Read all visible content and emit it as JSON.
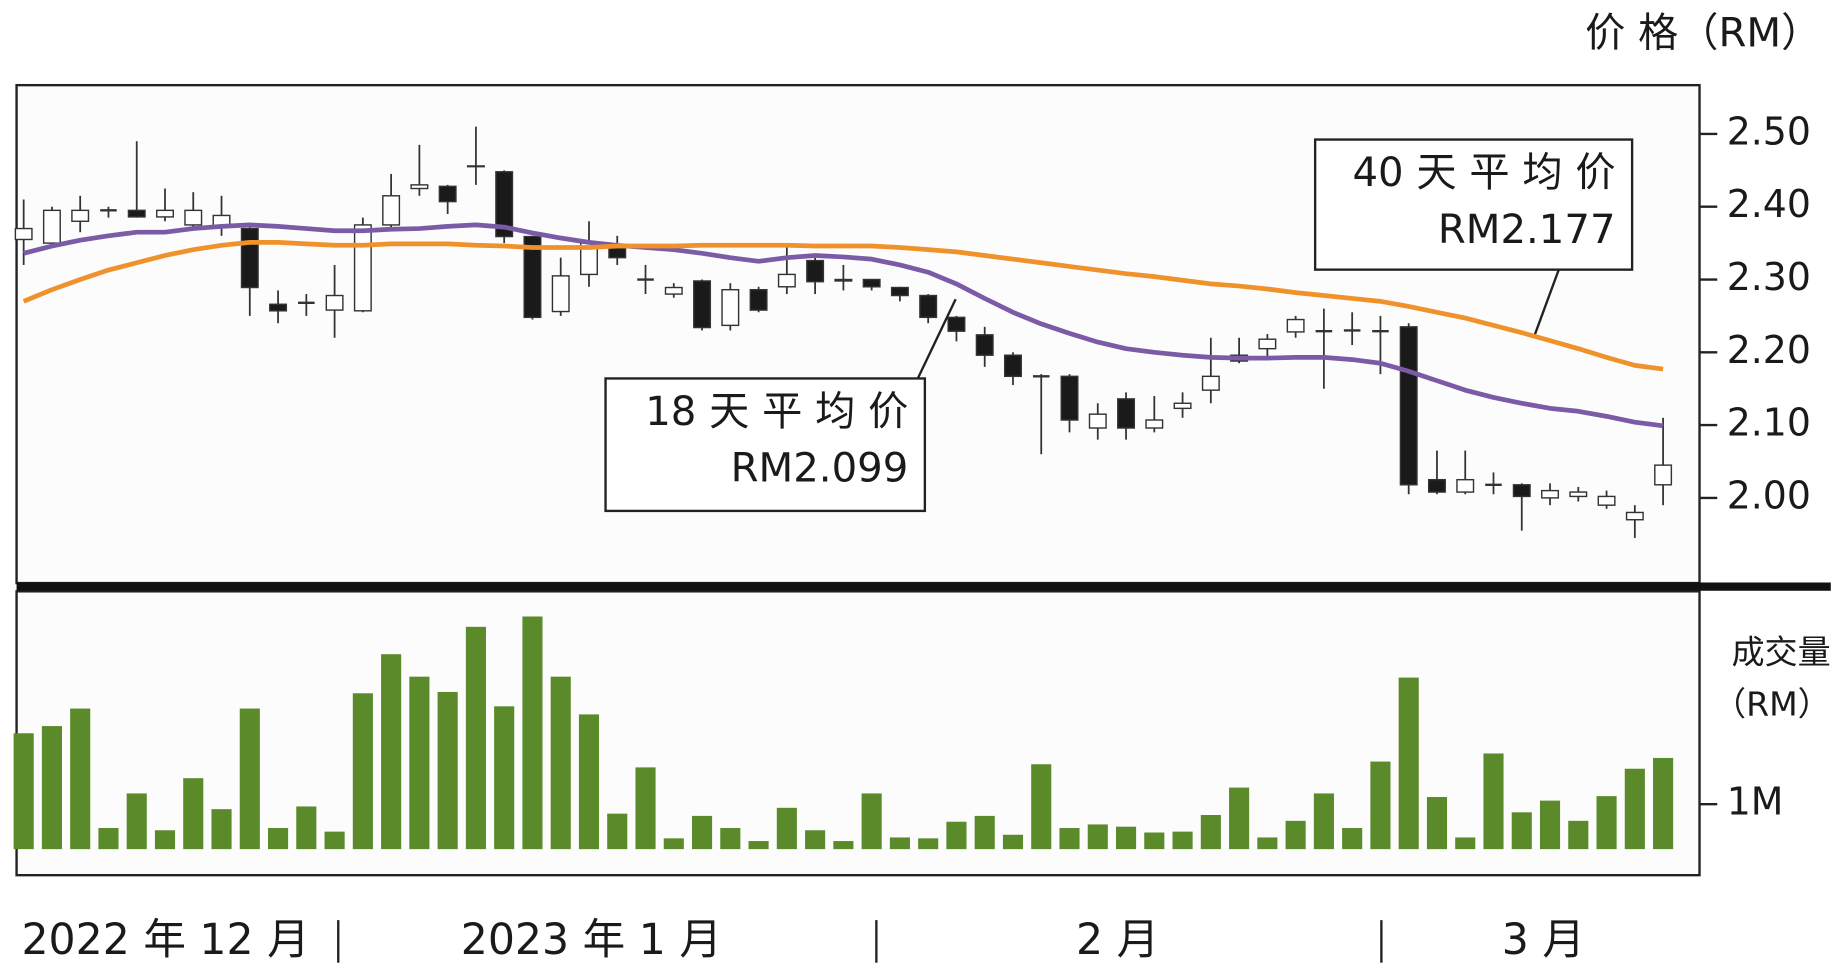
{
  "chart_data": [
    {
      "type": "candlestick",
      "y_label": "价 格（RM）",
      "categories": [
        null,
        null,
        null,
        null,
        null,
        null,
        null,
        null,
        null,
        null,
        null,
        null,
        null,
        null,
        null,
        null,
        null,
        null,
        null,
        null,
        null,
        null,
        null,
        null,
        null,
        null,
        null,
        null,
        null,
        null,
        null,
        null,
        null,
        null,
        null,
        null,
        null,
        null,
        null,
        null,
        null,
        null,
        null,
        null,
        null,
        null,
        null,
        null,
        null,
        null,
        null,
        null,
        null,
        null,
        null,
        null,
        null,
        null,
        null
      ],
      "open": [
        2.355,
        2.35,
        2.38,
        2.395,
        2.395,
        2.386,
        2.375,
        2.372,
        2.37,
        2.266,
        2.268,
        2.258,
        2.257,
        2.375,
        2.425,
        2.428,
        2.455,
        2.448,
        2.359,
        2.256,
        2.307,
        2.343,
        2.3,
        2.28,
        2.298,
        2.237,
        2.286,
        2.29,
        2.326,
        2.3,
        2.3,
        2.289,
        2.278,
        2.248,
        2.224,
        2.196,
        2.167,
        2.167,
        2.096,
        2.136,
        2.096,
        2.123,
        2.148,
        2.196,
        2.205,
        2.228,
        2.229,
        2.23,
        2.229,
        2.235,
        2.025,
        2.008,
        2.018,
        2.018,
        2.0,
        2.002,
        1.99,
        1.97,
        2.018
      ],
      "high": [
        2.41,
        2.4,
        2.415,
        2.4,
        2.49,
        2.425,
        2.42,
        2.415,
        2.375,
        2.285,
        2.28,
        2.32,
        2.385,
        2.445,
        2.485,
        2.43,
        2.51,
        2.45,
        2.36,
        2.33,
        2.38,
        2.36,
        2.32,
        2.295,
        2.3,
        2.295,
        2.29,
        2.35,
        2.335,
        2.32,
        2.3,
        2.29,
        2.28,
        2.25,
        2.235,
        2.2,
        2.17,
        2.17,
        2.13,
        2.145,
        2.14,
        2.145,
        2.22,
        2.22,
        2.225,
        2.25,
        2.26,
        2.255,
        2.25,
        2.24,
        2.065,
        2.065,
        2.035,
        2.02,
        2.02,
        2.015,
        2.01,
        1.99,
        2.11
      ],
      "low": [
        2.32,
        2.35,
        2.365,
        2.385,
        2.385,
        2.38,
        2.37,
        2.36,
        2.25,
        2.24,
        2.25,
        2.22,
        2.255,
        2.37,
        2.415,
        2.39,
        2.43,
        2.35,
        2.245,
        2.25,
        2.29,
        2.32,
        2.28,
        2.275,
        2.23,
        2.23,
        2.255,
        2.28,
        2.28,
        2.285,
        2.285,
        2.27,
        2.24,
        2.215,
        2.18,
        2.155,
        2.06,
        2.09,
        2.08,
        2.08,
        2.09,
        2.11,
        2.13,
        2.185,
        2.19,
        2.22,
        2.15,
        2.21,
        2.17,
        2.005,
        2.005,
        2.005,
        2.005,
        1.955,
        1.99,
        1.995,
        1.985,
        1.945,
        1.99
      ],
      "close": [
        2.37,
        2.395,
        2.395,
        2.395,
        2.386,
        2.395,
        2.395,
        2.388,
        2.289,
        2.257,
        2.268,
        2.278,
        2.375,
        2.415,
        2.43,
        2.407,
        2.456,
        2.359,
        2.248,
        2.305,
        2.35,
        2.33,
        2.3,
        2.289,
        2.234,
        2.286,
        2.258,
        2.307,
        2.297,
        2.298,
        2.29,
        2.278,
        2.248,
        2.229,
        2.196,
        2.167,
        2.167,
        2.107,
        2.115,
        2.096,
        2.107,
        2.13,
        2.167,
        2.188,
        2.218,
        2.245,
        2.229,
        2.23,
        2.229,
        2.018,
        2.008,
        2.025,
        2.018,
        2.002,
        2.01,
        2.008,
        2.002,
        1.98,
        2.045
      ],
      "up_color": "#ffffff",
      "down_color": "#1a1a1a",
      "series": [
        {
          "name": "18 天 平 均 价",
          "color": "#7b5aa6",
          "values": [
            2.336,
            2.346,
            2.354,
            2.36,
            2.365,
            2.365,
            2.37,
            2.373,
            2.375,
            2.373,
            2.37,
            2.367,
            2.367,
            2.369,
            2.37,
            2.373,
            2.375,
            2.372,
            2.364,
            2.357,
            2.351,
            2.347,
            2.344,
            2.341,
            2.336,
            2.33,
            2.325,
            2.33,
            2.333,
            2.331,
            2.328,
            2.32,
            2.31,
            2.294,
            2.274,
            2.255,
            2.239,
            2.226,
            2.214,
            2.205,
            2.2,
            2.196,
            2.193,
            2.192,
            2.192,
            2.193,
            2.193,
            2.19,
            2.185,
            2.174,
            2.161,
            2.148,
            2.138,
            2.13,
            2.123,
            2.119,
            2.112,
            2.104,
            2.099
          ],
          "value_labels": [
            null,
            null,
            null,
            null,
            null,
            null,
            null,
            null,
            null,
            null,
            null,
            null,
            null,
            null,
            null,
            null,
            null,
            null,
            null,
            null,
            null,
            null,
            null,
            null,
            null,
            null,
            null,
            null,
            null,
            null,
            null,
            null,
            null,
            null,
            null,
            null,
            null,
            null,
            null,
            null,
            null,
            null,
            null,
            null,
            null,
            null,
            null,
            null,
            null,
            null,
            null,
            null,
            null,
            null,
            null,
            null,
            null,
            null,
            "RM2.099"
          ]
        },
        {
          "name": "40 天 平 均 价",
          "color": "#f0922b",
          "values": [
            2.27,
            2.286,
            2.3,
            2.313,
            2.323,
            2.333,
            2.341,
            2.347,
            2.351,
            2.351,
            2.349,
            2.347,
            2.347,
            2.349,
            2.349,
            2.349,
            2.347,
            2.346,
            2.344,
            2.344,
            2.344,
            2.346,
            2.346,
            2.346,
            2.347,
            2.347,
            2.347,
            2.347,
            2.346,
            2.346,
            2.346,
            2.344,
            2.341,
            2.338,
            2.333,
            2.328,
            2.323,
            2.318,
            2.313,
            2.308,
            2.304,
            2.299,
            2.294,
            2.291,
            2.287,
            2.282,
            2.278,
            2.274,
            2.27,
            2.263,
            2.255,
            2.247,
            2.237,
            2.227,
            2.216,
            2.205,
            2.193,
            2.182,
            2.177
          ],
          "value_labels": [
            null,
            null,
            null,
            null,
            null,
            null,
            null,
            null,
            null,
            null,
            null,
            null,
            null,
            null,
            null,
            null,
            null,
            null,
            null,
            null,
            null,
            null,
            null,
            null,
            null,
            null,
            null,
            null,
            null,
            null,
            null,
            null,
            null,
            null,
            null,
            null,
            null,
            null,
            null,
            null,
            null,
            null,
            null,
            null,
            null,
            null,
            null,
            null,
            null,
            null,
            null,
            null,
            null,
            null,
            null,
            null,
            null,
            null,
            "RM2.177"
          ]
        }
      ],
      "ylim": [
        1.883,
        2.567
      ],
      "yticks": [
        {
          "value": 2.5,
          "label": "2.50"
        },
        {
          "value": 2.4,
          "label": "2.40"
        },
        {
          "value": 2.3,
          "label": "2.30"
        },
        {
          "value": 2.2,
          "label": "2.20"
        },
        {
          "value": 2.1,
          "label": "2.10"
        },
        {
          "value": 2.0,
          "label": "2.00"
        }
      ]
    },
    {
      "type": "bar",
      "y_label": [
        "成交量",
        "（RM）"
      ],
      "color": "#5a8a2a",
      "x_labels": [
        "2022 年 12 月",
        "2023 年 1 月",
        "2 月",
        "3 月"
      ],
      "values": [
        2580000,
        2740000,
        3130000,
        470000,
        1240000,
        420000,
        1580000,
        890000,
        3130000,
        470000,
        950000,
        390000,
        3470000,
        4340000,
        3840000,
        3500000,
        4950000,
        3180000,
        5180000,
        3840000,
        3000000,
        790000,
        1820000,
        240000,
        740000,
        470000,
        180000,
        920000,
        420000,
        180000,
        1240000,
        260000,
        240000,
        610000,
        740000,
        320000,
        1890000,
        470000,
        550000,
        500000,
        370000,
        390000,
        760000,
        1370000,
        260000,
        630000,
        1240000,
        470000,
        1950000,
        3820000,
        1160000,
        260000,
        2130000,
        820000,
        1080000,
        630000,
        1180000,
        1790000,
        2030000
      ],
      "ylim": [
        -580000,
        5740000
      ],
      "yticks": [
        {
          "value": 1000000,
          "label": "1M"
        }
      ]
    }
  ]
}
